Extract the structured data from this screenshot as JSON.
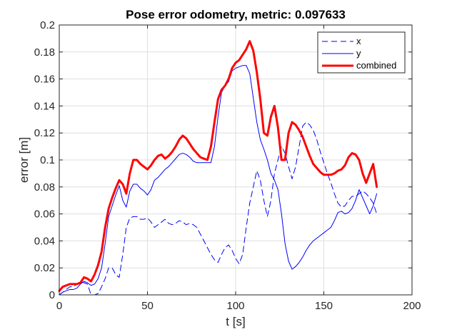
{
  "chart_data": {
    "type": "line",
    "title": "Pose error odometry, metric: 0.097633",
    "xlabel": "t [s]",
    "ylabel": "error [m]",
    "xlim": [
      0,
      200
    ],
    "ylim": [
      0,
      0.2
    ],
    "x_ticks": [
      "0",
      "50",
      "100",
      "150",
      "200"
    ],
    "y_ticks": [
      "0",
      "0.02",
      "0.04",
      "0.06",
      "0.08",
      "0.1",
      "0.12",
      "0.14",
      "0.16",
      "0.18",
      "0.2"
    ],
    "grid": true,
    "legend_position": "top-right",
    "series": [
      {
        "name": "x",
        "color": "#0000ff",
        "style": "dashed",
        "x": [
          0,
          2,
          4,
          6,
          8,
          10,
          12,
          14,
          16,
          18,
          20,
          22,
          24,
          26,
          28,
          30,
          32,
          34,
          36,
          38,
          40,
          42,
          44,
          46,
          48,
          50,
          52,
          54,
          56,
          58,
          60,
          62,
          64,
          66,
          68,
          70,
          72,
          74,
          76,
          78,
          80,
          82,
          84,
          86,
          88,
          90,
          92,
          94,
          96,
          98,
          100,
          102,
          104,
          106,
          108,
          110,
          112,
          114,
          116,
          118,
          120,
          122,
          124,
          126,
          128,
          130,
          132,
          134,
          136,
          138,
          140,
          142,
          144,
          146,
          148,
          150,
          152,
          154,
          156,
          158,
          160,
          162,
          164,
          166,
          168,
          170,
          172,
          174,
          176,
          178,
          180
        ],
        "values": [
          0.0,
          0.002,
          0.004,
          0.006,
          0.006,
          0.008,
          0.01,
          0.009,
          0.008,
          0.0,
          0.0,
          0.001,
          0.006,
          0.012,
          0.02,
          0.02,
          0.015,
          0.013,
          0.03,
          0.05,
          0.057,
          0.058,
          0.058,
          0.056,
          0.056,
          0.057,
          0.054,
          0.05,
          0.052,
          0.054,
          0.056,
          0.053,
          0.052,
          0.053,
          0.055,
          0.054,
          0.052,
          0.053,
          0.052,
          0.05,
          0.045,
          0.04,
          0.035,
          0.03,
          0.026,
          0.024,
          0.03,
          0.035,
          0.037,
          0.033,
          0.027,
          0.023,
          0.03,
          0.05,
          0.068,
          0.08,
          0.092,
          0.085,
          0.07,
          0.058,
          0.07,
          0.09,
          0.1,
          0.11,
          0.105,
          0.095,
          0.086,
          0.095,
          0.11,
          0.125,
          0.128,
          0.126,
          0.122,
          0.115,
          0.106,
          0.098,
          0.09,
          0.083,
          0.075,
          0.068,
          0.065,
          0.066,
          0.07,
          0.073,
          0.073,
          0.075,
          0.077,
          0.075,
          0.072,
          0.068,
          0.06
        ]
      },
      {
        "name": "y",
        "color": "#0000ff",
        "style": "solid",
        "x": [
          0,
          2,
          4,
          6,
          8,
          10,
          12,
          14,
          16,
          18,
          20,
          22,
          24,
          26,
          28,
          30,
          32,
          34,
          36,
          38,
          40,
          42,
          44,
          46,
          48,
          50,
          52,
          54,
          56,
          58,
          60,
          62,
          64,
          66,
          68,
          70,
          72,
          74,
          76,
          78,
          80,
          82,
          84,
          86,
          88,
          90,
          92,
          94,
          96,
          98,
          100,
          102,
          104,
          106,
          108,
          110,
          112,
          114,
          116,
          118,
          120,
          122,
          124,
          126,
          128,
          130,
          132,
          134,
          136,
          138,
          140,
          142,
          144,
          146,
          148,
          150,
          152,
          154,
          156,
          158,
          160,
          162,
          164,
          166,
          168,
          170,
          172,
          174,
          176,
          178,
          180
        ],
        "values": [
          0.0,
          0.002,
          0.003,
          0.004,
          0.004,
          0.005,
          0.008,
          0.01,
          0.009,
          0.007,
          0.008,
          0.012,
          0.02,
          0.038,
          0.058,
          0.066,
          0.074,
          0.081,
          0.07,
          0.065,
          0.077,
          0.082,
          0.082,
          0.079,
          0.077,
          0.074,
          0.078,
          0.085,
          0.087,
          0.09,
          0.093,
          0.095,
          0.098,
          0.101,
          0.104,
          0.105,
          0.104,
          0.102,
          0.099,
          0.098,
          0.098,
          0.098,
          0.098,
          0.098,
          0.11,
          0.132,
          0.15,
          0.155,
          0.158,
          0.166,
          0.168,
          0.169,
          0.17,
          0.17,
          0.164,
          0.146,
          0.128,
          0.115,
          0.108,
          0.1,
          0.09,
          0.085,
          0.078,
          0.06,
          0.038,
          0.025,
          0.019,
          0.021,
          0.024,
          0.028,
          0.033,
          0.037,
          0.04,
          0.042,
          0.044,
          0.046,
          0.048,
          0.05,
          0.055,
          0.061,
          0.062,
          0.06,
          0.061,
          0.064,
          0.07,
          0.078,
          0.072,
          0.066,
          0.06,
          0.066,
          0.075
        ]
      },
      {
        "name": "combined",
        "color": "#ff0000",
        "style": "solid-thick",
        "x": [
          0,
          2,
          4,
          6,
          8,
          10,
          12,
          14,
          16,
          18,
          20,
          22,
          24,
          26,
          28,
          30,
          32,
          34,
          36,
          38,
          40,
          42,
          44,
          46,
          48,
          50,
          52,
          54,
          56,
          58,
          60,
          62,
          64,
          66,
          68,
          70,
          72,
          74,
          76,
          78,
          80,
          82,
          84,
          86,
          88,
          90,
          92,
          94,
          96,
          98,
          100,
          102,
          104,
          106,
          108,
          110,
          112,
          114,
          116,
          118,
          120,
          122,
          124,
          126,
          128,
          130,
          132,
          134,
          136,
          138,
          140,
          142,
          144,
          146,
          148,
          150,
          152,
          154,
          156,
          158,
          160,
          162,
          164,
          166,
          168,
          170,
          172,
          174,
          176,
          178,
          180
        ],
        "values": [
          0.003,
          0.006,
          0.007,
          0.008,
          0.008,
          0.008,
          0.009,
          0.013,
          0.012,
          0.01,
          0.015,
          0.022,
          0.032,
          0.05,
          0.064,
          0.072,
          0.079,
          0.085,
          0.082,
          0.075,
          0.09,
          0.1,
          0.1,
          0.097,
          0.095,
          0.093,
          0.096,
          0.1,
          0.103,
          0.104,
          0.101,
          0.103,
          0.106,
          0.11,
          0.115,
          0.118,
          0.116,
          0.112,
          0.108,
          0.105,
          0.102,
          0.101,
          0.1,
          0.11,
          0.128,
          0.145,
          0.152,
          0.155,
          0.16,
          0.168,
          0.172,
          0.174,
          0.178,
          0.182,
          0.188,
          0.181,
          0.165,
          0.145,
          0.12,
          0.118,
          0.132,
          0.14,
          0.124,
          0.1,
          0.1,
          0.12,
          0.128,
          0.126,
          0.122,
          0.117,
          0.11,
          0.103,
          0.097,
          0.094,
          0.091,
          0.089,
          0.089,
          0.089,
          0.09,
          0.092,
          0.093,
          0.096,
          0.102,
          0.105,
          0.104,
          0.1,
          0.09,
          0.083,
          0.09,
          0.097,
          0.08
        ]
      }
    ]
  }
}
